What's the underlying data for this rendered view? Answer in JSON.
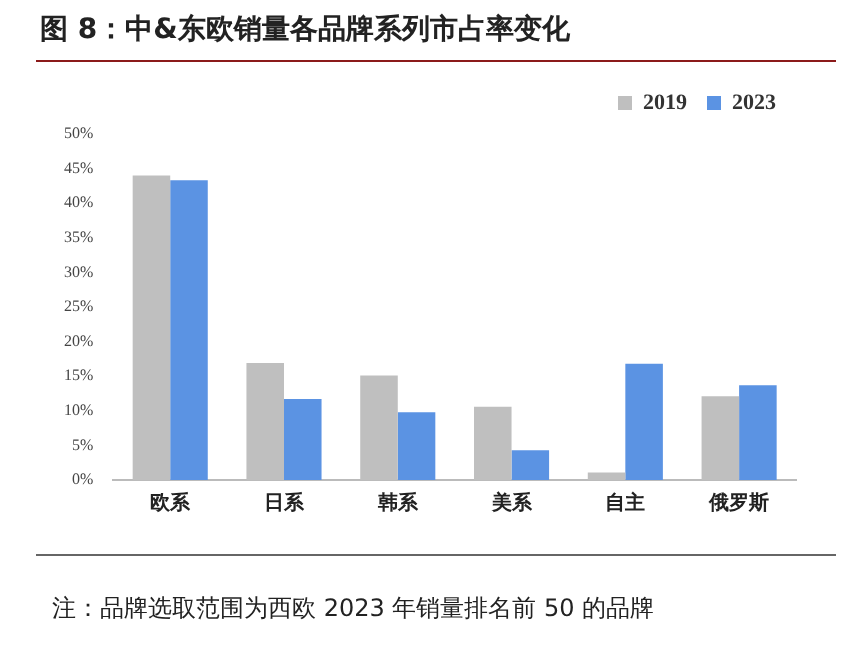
{
  "chart_data": {
    "type": "bar",
    "title": "图 8：中&东欧销量各品牌系列市占率变化",
    "categories": [
      "欧系",
      "日系",
      "韩系",
      "美系",
      "自主",
      "俄罗斯"
    ],
    "series": [
      {
        "name": "2019",
        "color": "#bfbfbf",
        "values": [
          44.0,
          16.9,
          15.1,
          10.6,
          1.1,
          12.1
        ]
      },
      {
        "name": "2023",
        "color": "#5b93e3",
        "values": [
          43.3,
          11.7,
          9.8,
          4.3,
          16.8,
          13.7
        ]
      }
    ],
    "ylim": [
      0,
      50
    ],
    "yticks": [
      {
        "value": 0,
        "label": "0%"
      },
      {
        "value": 5,
        "label": "5%"
      },
      {
        "value": 10,
        "label": "10%"
      },
      {
        "value": 15,
        "label": "15%"
      },
      {
        "value": 20,
        "label": "20%"
      },
      {
        "value": 25,
        "label": "25%"
      },
      {
        "value": 30,
        "label": "30%"
      },
      {
        "value": 35,
        "label": "35%"
      },
      {
        "value": 40,
        "label": "40%"
      },
      {
        "value": 45,
        "label": "45%"
      },
      {
        "value": 50,
        "label": "50%"
      }
    ],
    "grid": false,
    "legend": "top right",
    "annotations": [
      "注：品牌选取范围为西欧 2023 年销量排名前 50 的品牌"
    ]
  }
}
